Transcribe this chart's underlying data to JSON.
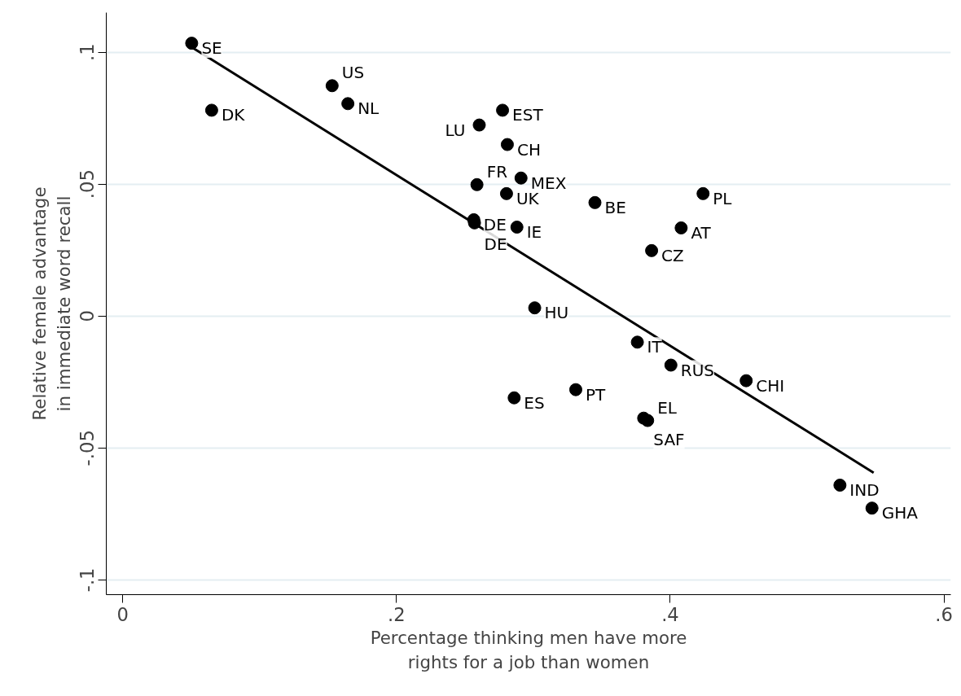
{
  "chart_data": {
    "type": "scatter",
    "xlabel": "Percentage thinking men have more\nrights for a job than women",
    "ylabel": "Relative female advantage\nin immediate word recall",
    "xlim": [
      -0.012,
      0.605
    ],
    "ylim": [
      -0.1056,
      0.115
    ],
    "xticks": [
      0,
      {
        "value": 0.2,
        "label": ".2"
      },
      {
        "value": 0.4,
        "label": ".4"
      },
      {
        "value": 0.6,
        "label": ".6"
      }
    ],
    "yticks": [
      {
        "value": -0.1,
        "label": "-.1"
      },
      {
        "value": -0.05,
        "label": "-.05"
      },
      0,
      {
        "value": 0.05,
        "label": ".05"
      },
      {
        "value": 0.1,
        "label": ".1"
      }
    ],
    "grid": "y",
    "marker": "circle",
    "series": [
      {
        "color": "#000000",
        "x": [
          0.0504,
          0.153,
          0.065,
          0.1645,
          0.2775,
          0.2605,
          0.281,
          0.291,
          0.2588,
          0.2804,
          0.345,
          0.424,
          0.2565,
          0.257,
          0.288,
          0.408,
          0.3864,
          0.301,
          0.376,
          0.4005,
          0.4555,
          0.331,
          0.286,
          0.3806,
          0.3835,
          0.524,
          0.5474
        ],
        "values": [
          0.1034,
          0.0873,
          0.078,
          0.0805,
          0.078,
          0.0724,
          0.065,
          0.0523,
          0.0498,
          0.0464,
          0.043,
          0.0464,
          0.0365,
          0.0353,
          0.0337,
          0.0334,
          0.0248,
          0.0031,
          -0.0099,
          -0.0186,
          -0.0245,
          -0.0279,
          -0.031,
          -0.0387,
          -0.0396,
          -0.0641,
          -0.0728
        ]
      },
      {
        "type": "line",
        "color": "#000000",
        "marker": "none",
        "line_style": "solid",
        "x": [
          0.0504,
          0.5486
        ],
        "values": [
          0.1019,
          -0.0594
        ]
      }
    ],
    "annotations": [
      {
        "text": "SE",
        "x": 0.0504,
        "y": 0.1034
      },
      {
        "text": "US",
        "x": 0.153,
        "y": 0.0873
      },
      {
        "text": "DK",
        "x": 0.065,
        "y": 0.078
      },
      {
        "text": "NL",
        "x": 0.1645,
        "y": 0.0805
      },
      {
        "text": "EST",
        "x": 0.2775,
        "y": 0.078
      },
      {
        "text": "LU",
        "x": 0.2605,
        "y": 0.0724
      },
      {
        "text": "CH",
        "x": 0.281,
        "y": 0.065
      },
      {
        "text": "MEX",
        "x": 0.291,
        "y": 0.0523
      },
      {
        "text": "FR",
        "x": 0.2588,
        "y": 0.0498
      },
      {
        "text": "UK",
        "x": 0.2804,
        "y": 0.0464
      },
      {
        "text": "BE",
        "x": 0.345,
        "y": 0.043
      },
      {
        "text": "PL",
        "x": 0.424,
        "y": 0.0464
      },
      {
        "text": "DE",
        "x": 0.2565,
        "y": 0.0365
      },
      {
        "text": "DE",
        "x": 0.257,
        "y": 0.0353
      },
      {
        "text": "IE",
        "x": 0.288,
        "y": 0.0337
      },
      {
        "text": "AT",
        "x": 0.408,
        "y": 0.0334
      },
      {
        "text": "CZ",
        "x": 0.3864,
        "y": 0.0248
      },
      {
        "text": "HU",
        "x": 0.301,
        "y": 0.0031
      },
      {
        "text": "IT",
        "x": 0.376,
        "y": -0.0099
      },
      {
        "text": "RUS",
        "x": 0.4005,
        "y": -0.0186
      },
      {
        "text": "CHI",
        "x": 0.4555,
        "y": -0.0245
      },
      {
        "text": "PT",
        "x": 0.331,
        "y": -0.0279
      },
      {
        "text": "ES",
        "x": 0.286,
        "y": -0.031
      },
      {
        "text": "SAF",
        "x": 0.3806,
        "y": -0.0387
      },
      {
        "text": "EL",
        "x": 0.3835,
        "y": -0.0396
      },
      {
        "text": "IND",
        "x": 0.524,
        "y": -0.0641
      },
      {
        "text": "GHA",
        "x": 0.5474,
        "y": -0.0728
      }
    ]
  }
}
